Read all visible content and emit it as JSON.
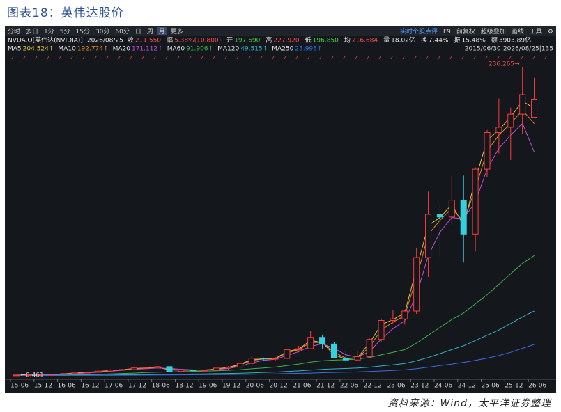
{
  "title": "图表18：英伟达股价",
  "source": "资料来源：Wind，太平洋证券整理",
  "toolbar": {
    "left": [
      "分时",
      "多日",
      "1分",
      "5分",
      "15分",
      "30分",
      "60分",
      "日",
      "周",
      "月",
      "更多"
    ],
    "active": "月",
    "right": [
      "实时个股点评",
      "F9",
      "前复权",
      "超级叠加",
      "画线",
      "工具",
      "⚙"
    ]
  },
  "info": {
    "ticker": "NVDA.O[英伟达(NVIDIA)]",
    "date": "2026/08/25",
    "items": [
      {
        "label": "收",
        "value": "211.550",
        "color": "#ff4d4d"
      },
      {
        "label": "幅",
        "value": "5.38%(10.800)",
        "color": "#ff4d4d"
      },
      {
        "label": "开",
        "value": "197.690",
        "color": "#3fd13f"
      },
      {
        "label": "高",
        "value": "227.920",
        "color": "#ff4d4d"
      },
      {
        "label": "低",
        "value": "196.850",
        "color": "#3fd13f"
      },
      {
        "label": "均",
        "value": "216.684",
        "color": "#ff4d4d"
      },
      {
        "label": "量",
        "value": "18.02亿",
        "color": "#e6e6e6"
      },
      {
        "label": "换",
        "value": "7.44%",
        "color": "#e6e6e6"
      },
      {
        "label": "振",
        "value": "15.48%",
        "color": "#e6e6e6"
      },
      {
        "label": "额",
        "value": "3903.89亿",
        "color": "#e6e6e6"
      }
    ]
  },
  "chart_data": {
    "type": "candlestick",
    "range_label": "2015/06/30-2026/08/25|135",
    "max_label": "236.265→",
    "min_label": "←0.461",
    "up_color": "#ff3b3b",
    "down_color": "#35d0e0",
    "ylim": [
      0,
      236.265
    ],
    "x_labels": [
      "15-06",
      "15-12",
      "16-06",
      "16-12",
      "17-06",
      "17-12",
      "18-06",
      "18-12",
      "19-06",
      "19-12",
      "20-06",
      "20-12",
      "21-06",
      "21-12",
      "22-06",
      "22-12",
      "23-06",
      "23-12",
      "24-06",
      "24-12",
      "25-06",
      "25-12",
      "26-06"
    ],
    "candles": [
      [
        0.5,
        0.65,
        0.461,
        0.6
      ],
      [
        0.6,
        0.85,
        0.55,
        0.8
      ],
      [
        0.8,
        0.95,
        0.75,
        0.9
      ],
      [
        0.9,
        1.3,
        0.85,
        1.2
      ],
      [
        1.2,
        1.8,
        1.15,
        1.7
      ],
      [
        1.7,
        2.8,
        1.65,
        2.6
      ],
      [
        2.6,
        3.0,
        2.4,
        2.7
      ],
      [
        2.7,
        3.9,
        2.6,
        3.6
      ],
      [
        3.6,
        5.0,
        3.5,
        4.5
      ],
      [
        4.5,
        5.2,
        4.3,
        4.8
      ],
      [
        4.8,
        6.3,
        4.7,
        6.0
      ],
      [
        6.0,
        6.6,
        5.3,
        6.0
      ],
      [
        6.0,
        7.3,
        5.9,
        7.0
      ],
      [
        7.0,
        7.3,
        3.2,
        3.4
      ],
      [
        3.4,
        4.7,
        3.3,
        4.5
      ],
      [
        4.5,
        4.7,
        3.6,
        4.2
      ],
      [
        4.2,
        4.8,
        4.0,
        4.3
      ],
      [
        4.3,
        6.0,
        4.2,
        5.9
      ],
      [
        5.9,
        7.3,
        4.5,
        6.6
      ],
      [
        6.6,
        10.0,
        6.5,
        9.5
      ],
      [
        9.5,
        14.8,
        9.3,
        13.5
      ],
      [
        13.5,
        14.0,
        11.8,
        13.0
      ],
      [
        13.0,
        14.5,
        11.5,
        13.3
      ],
      [
        13.3,
        20.8,
        13.2,
        20.0
      ],
      [
        20.0,
        23.0,
        18.0,
        20.7
      ],
      [
        20.7,
        34.6,
        20.2,
        29.4
      ],
      [
        29.4,
        31.5,
        20.8,
        24.3
      ],
      [
        24.3,
        26.0,
        13.3,
        13.6
      ],
      [
        13.6,
        19.0,
        10.8,
        12.1
      ],
      [
        12.1,
        18.8,
        11.8,
        14.6
      ],
      [
        14.6,
        28.5,
        14.2,
        27.8
      ],
      [
        27.8,
        43.9,
        26.0,
        42.3
      ],
      [
        42.3,
        50.2,
        40.0,
        43.5
      ],
      [
        43.5,
        50.5,
        39.2,
        49.5
      ],
      [
        49.5,
        97.4,
        47.3,
        90.4
      ],
      [
        90.4,
        140.8,
        75.6,
        123.5
      ],
      [
        123.5,
        131.3,
        90.7,
        121.4
      ],
      [
        121.4,
        152.9,
        115.6,
        134.3
      ],
      [
        134.3,
        153.1,
        86.6,
        108.4
      ],
      [
        108.4,
        159.4,
        95.0,
        158.0
      ],
      [
        158.0,
        188.0,
        152.0,
        186.0
      ],
      [
        186.0,
        212.0,
        170.0,
        190.0
      ],
      [
        190.0,
        205.0,
        165.0,
        200.0
      ],
      [
        200.0,
        236.265,
        185.0,
        215.0
      ],
      [
        197.69,
        227.92,
        196.85,
        211.55
      ]
    ],
    "series": [
      {
        "name": "MA5",
        "color": "#e8c547",
        "label": "204.524↑",
        "values": [
          0.6,
          0.75,
          0.85,
          1.1,
          1.5,
          2.3,
          2.6,
          3.3,
          4.2,
          4.7,
          5.6,
          6.0,
          6.6,
          4.5,
          4.3,
          4.3,
          4.4,
          5.4,
          6.4,
          8.8,
          12.5,
          13.0,
          13.2,
          18.5,
          20.5,
          27,
          25.5,
          16,
          12.8,
          14,
          25,
          39,
          43,
          48,
          82,
          115,
          121,
          131,
          115,
          150,
          180,
          188,
          198,
          210,
          204.524
        ]
      },
      {
        "name": "MA10",
        "color": "#e08a2c",
        "label": "192.774↑",
        "values": [
          0.55,
          0.7,
          0.82,
          1.0,
          1.4,
          2.1,
          2.5,
          3.1,
          4.0,
          4.6,
          5.4,
          5.9,
          6.4,
          5.0,
          4.4,
          4.3,
          4.4,
          5.1,
          6.1,
          8.2,
          11.8,
          12.8,
          13.1,
          17.5,
          20,
          25.5,
          25.5,
          18,
          13.5,
          13.8,
          22,
          35,
          41,
          46,
          75,
          108,
          119,
          128,
          118,
          143,
          172,
          184,
          193,
          203,
          192.774
        ]
      },
      {
        "name": "MA20",
        "color": "#c050d8",
        "label": "171.112↑",
        "values": [
          0.5,
          0.6,
          0.75,
          0.9,
          1.2,
          1.7,
          2.2,
          2.8,
          3.5,
          4.2,
          4.9,
          5.5,
          6.0,
          5.6,
          5.0,
          4.6,
          4.5,
          4.8,
          5.6,
          7.2,
          10,
          11.8,
          12.7,
          15.5,
          18.5,
          22.5,
          24.5,
          21,
          16,
          14.3,
          18.5,
          28,
          36,
          42,
          62,
          92,
          110,
          121,
          120,
          133,
          158,
          174,
          184,
          193,
          171.112
        ]
      },
      {
        "name": "MA60",
        "color": "#3cb44b",
        "label": "91.906↑",
        "values": [
          0.4,
          0.45,
          0.5,
          0.55,
          0.65,
          0.8,
          1.0,
          1.2,
          1.5,
          1.8,
          2.1,
          2.5,
          2.8,
          3.0,
          3.2,
          3.4,
          3.6,
          3.9,
          4.2,
          4.7,
          5.4,
          6.0,
          6.7,
          7.8,
          9,
          10.5,
          11.5,
          12,
          12.3,
          12.8,
          14,
          16,
          18,
          20,
          25,
          31,
          37,
          43,
          48,
          55,
          62,
          70,
          78,
          86,
          91.906
        ]
      },
      {
        "name": "MA120",
        "color": "#2fb5c8",
        "label": "49.515↑",
        "values": [
          0.35,
          0.37,
          0.4,
          0.42,
          0.45,
          0.5,
          0.55,
          0.6,
          0.7,
          0.8,
          0.9,
          1.0,
          1.1,
          1.2,
          1.3,
          1.4,
          1.5,
          1.65,
          1.8,
          2.0,
          2.3,
          2.6,
          2.9,
          3.3,
          3.8,
          4.4,
          4.9,
          5.3,
          5.6,
          6.0,
          6.6,
          7.5,
          8.4,
          9.4,
          11.5,
          14,
          17,
          20,
          23,
          27,
          31,
          35,
          40,
          45,
          49.515
        ]
      },
      {
        "name": "MA250",
        "color": "#3a6fe0",
        "label": "23.998↑",
        "values": [
          0.3,
          0.31,
          0.32,
          0.33,
          0.35,
          0.37,
          0.4,
          0.42,
          0.45,
          0.5,
          0.55,
          0.6,
          0.65,
          0.7,
          0.75,
          0.8,
          0.85,
          0.9,
          1.0,
          1.1,
          1.2,
          1.35,
          1.5,
          1.7,
          1.9,
          2.1,
          2.4,
          2.6,
          2.8,
          3.0,
          3.3,
          3.7,
          4.1,
          4.6,
          5.5,
          6.6,
          7.8,
          9.0,
          10.3,
          11.8,
          13.5,
          15.5,
          18,
          21,
          23.998
        ]
      }
    ]
  }
}
